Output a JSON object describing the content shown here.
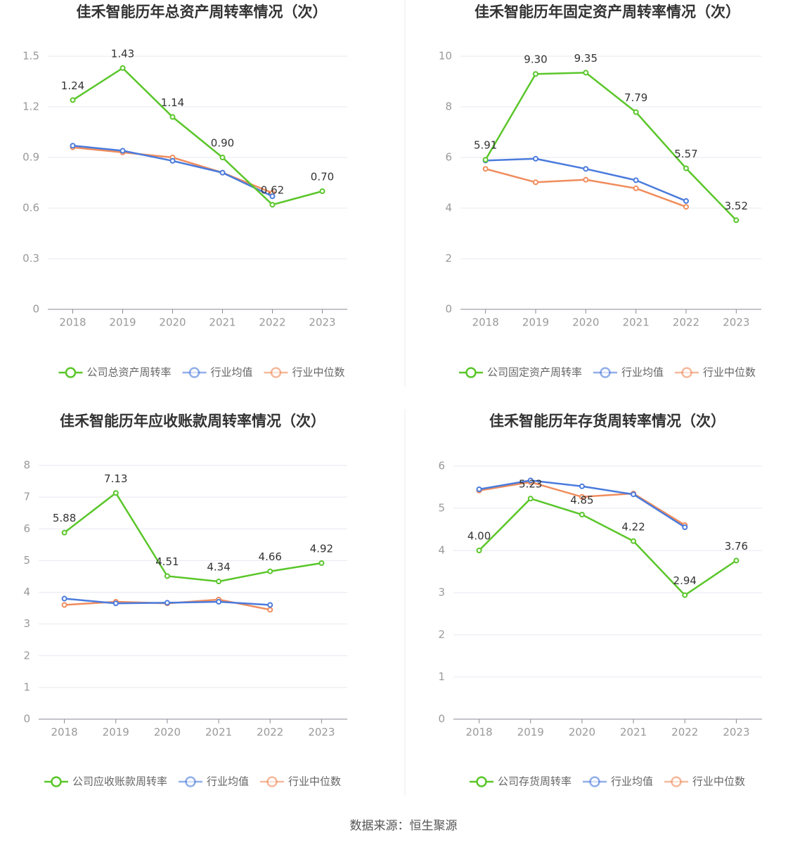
{
  "chart_data": [
    {
      "type": "line",
      "title": "佳禾智能历年总资产周转率情况（次）",
      "categories": [
        "2018",
        "2019",
        "2020",
        "2021",
        "2022",
        "2023"
      ],
      "series": [
        {
          "name": "公司总资产周转率",
          "color": "#5ac62a",
          "values": [
            1.24,
            1.43,
            1.14,
            0.9,
            0.62,
            0.7
          ],
          "value_labels": [
            "1.24",
            "1.43",
            "1.14",
            "0.90",
            "0.62",
            "0.70"
          ]
        },
        {
          "name": "行业均值",
          "color": "#4a7bdc",
          "values": [
            0.97,
            0.94,
            0.88,
            0.81,
            0.67,
            null
          ]
        },
        {
          "name": "行业中位数",
          "color": "#f08c5c",
          "values": [
            0.96,
            0.93,
            0.9,
            0.81,
            0.69,
            null
          ]
        }
      ],
      "ylim": [
        0,
        1.5
      ],
      "yticks": [
        0,
        0.3,
        0.6,
        0.9,
        1.2,
        1.5
      ],
      "grid": true,
      "legend": "bottom"
    },
    {
      "type": "line",
      "title": "佳禾智能历年固定资产周转率情况（次）",
      "categories": [
        "2018",
        "2019",
        "2020",
        "2021",
        "2022",
        "2023"
      ],
      "series": [
        {
          "name": "公司固定资产周转率",
          "color": "#5ac62a",
          "values": [
            5.91,
            9.3,
            9.35,
            7.79,
            5.57,
            3.52
          ],
          "value_labels": [
            "5.91",
            "9.30",
            "9.35",
            "7.79",
            "5.57",
            "3.52"
          ]
        },
        {
          "name": "行业均值",
          "color": "#4a7bdc",
          "values": [
            5.88,
            5.95,
            5.55,
            5.1,
            4.28,
            null
          ]
        },
        {
          "name": "行业中位数",
          "color": "#f08c5c",
          "values": [
            5.55,
            5.02,
            5.12,
            4.78,
            4.05,
            null
          ]
        }
      ],
      "ylim": [
        0,
        10
      ],
      "yticks": [
        0,
        2,
        4,
        6,
        8,
        10
      ],
      "grid": true,
      "legend": "bottom"
    },
    {
      "type": "line",
      "title": "佳禾智能历年应收账款周转率情况（次）",
      "categories": [
        "2018",
        "2019",
        "2020",
        "2021",
        "2022",
        "2023"
      ],
      "series": [
        {
          "name": "公司应收账款周转率",
          "color": "#5ac62a",
          "values": [
            5.88,
            7.13,
            4.51,
            4.34,
            4.66,
            4.92
          ],
          "value_labels": [
            "5.88",
            "7.13",
            "4.51",
            "4.34",
            "4.66",
            "4.92"
          ]
        },
        {
          "name": "行业均值",
          "color": "#4a7bdc",
          "values": [
            3.8,
            3.65,
            3.67,
            3.7,
            3.6,
            null
          ]
        },
        {
          "name": "行业中位数",
          "color": "#f08c5c",
          "values": [
            3.6,
            3.7,
            3.65,
            3.77,
            3.45,
            null
          ]
        }
      ],
      "ylim": [
        0,
        8
      ],
      "yticks": [
        0,
        1,
        2,
        3,
        4,
        5,
        6,
        7,
        8
      ],
      "grid": true,
      "legend": "bottom"
    },
    {
      "type": "line",
      "title": "佳禾智能历年存货周转率情况（次）",
      "categories": [
        "2018",
        "2019",
        "2020",
        "2021",
        "2022",
        "2023"
      ],
      "series": [
        {
          "name": "公司存货周转率",
          "color": "#5ac62a",
          "values": [
            4.0,
            5.23,
            4.85,
            4.22,
            2.94,
            3.76
          ],
          "value_labels": [
            "4.00",
            "5.23",
            "4.85",
            "4.22",
            "2.94",
            "3.76"
          ]
        },
        {
          "name": "行业均值",
          "color": "#4a7bdc",
          "values": [
            5.45,
            5.66,
            5.52,
            5.33,
            4.55,
            null
          ]
        },
        {
          "name": "行业中位数",
          "color": "#f08c5c",
          "values": [
            5.42,
            5.62,
            5.27,
            5.35,
            4.6,
            null
          ]
        }
      ],
      "ylim": [
        0,
        6
      ],
      "yticks": [
        0,
        1,
        2,
        3,
        4,
        5,
        6
      ],
      "grid": true,
      "legend": "bottom"
    }
  ],
  "source": "数据来源：恒生聚源"
}
